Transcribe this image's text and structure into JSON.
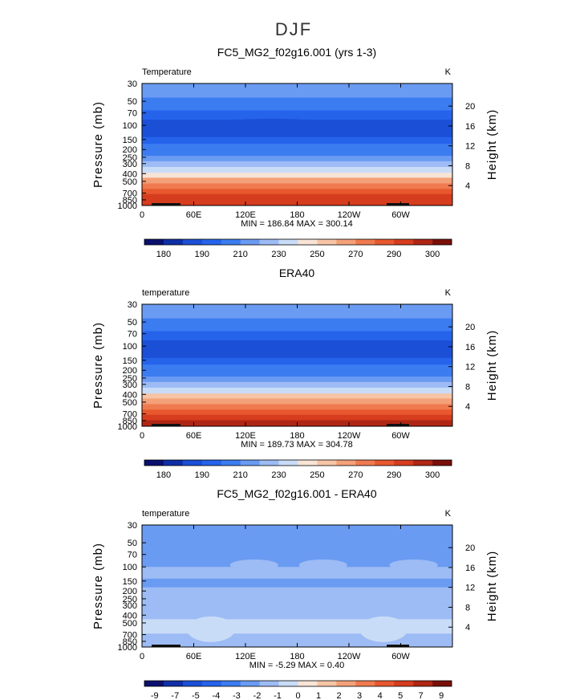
{
  "figure_title": "DJF",
  "chart_data": [
    {
      "type": "heatmap",
      "title": "FC5_MG2_f02g16.001 (yrs 1-3)",
      "variable_label": "Temperature",
      "units_label": "K",
      "ylabel": "Pressure (mb)",
      "y2label": "Height (km)",
      "xlabel": "",
      "x_ticks": [
        "0",
        "60E",
        "120E",
        "180",
        "120W",
        "60W"
      ],
      "x_tick_values": [
        0,
        60,
        120,
        180,
        240,
        300
      ],
      "xlim": [
        0,
        360
      ],
      "y_ticks": [
        "30",
        "50",
        "70",
        "100",
        "150",
        "200",
        "250",
        "300",
        "400",
        "500",
        "700",
        "850",
        "1000"
      ],
      "y_tick_values": [
        30,
        50,
        70,
        100,
        150,
        200,
        250,
        300,
        400,
        500,
        700,
        850,
        1000
      ],
      "ylim": [
        30,
        1000
      ],
      "y2_ticks": [
        "20",
        "16",
        "12",
        "8",
        "4"
      ],
      "y2_tick_values": [
        20,
        16,
        12,
        8,
        4
      ],
      "stats": "MIN = 186.84   MAX = 300.14",
      "min": 186.84,
      "max": 300.14,
      "colorbar_labels": [
        "180",
        "190",
        "210",
        "230",
        "250",
        "270",
        "290",
        "300"
      ],
      "colorbar_colors": [
        "#0a0f6e",
        "#0f2fa6",
        "#1a4fd6",
        "#2563eb",
        "#3b7cf0",
        "#6a9bf2",
        "#9dbbf4",
        "#c9dcf7",
        "#f8e4d6",
        "#f7c4a6",
        "#f4a078",
        "#f07a50",
        "#e8582e",
        "#d63c1e",
        "#b02614",
        "#7a0f0a"
      ],
      "band_values": [
        215,
        205,
        198,
        194,
        193,
        198,
        205,
        212,
        220,
        228,
        238,
        248,
        258,
        268,
        278,
        286,
        292,
        298
      ],
      "band_pressures": [
        30,
        45,
        65,
        85,
        110,
        140,
        170,
        200,
        240,
        280,
        330,
        390,
        450,
        530,
        620,
        720,
        840,
        1000
      ],
      "features": [
        {
          "x_center": 150,
          "pressure": 95,
          "value": 189
        }
      ]
    },
    {
      "type": "heatmap",
      "title": "ERA40",
      "variable_label": "temperature",
      "units_label": "K",
      "ylabel": "Pressure (mb)",
      "y2label": "Height (km)",
      "xlabel": "",
      "x_ticks": [
        "0",
        "60E",
        "120E",
        "180",
        "120W",
        "60W"
      ],
      "x_tick_values": [
        0,
        60,
        120,
        180,
        240,
        300
      ],
      "xlim": [
        0,
        360
      ],
      "y_ticks": [
        "30",
        "50",
        "70",
        "100",
        "150",
        "200",
        "250",
        "300",
        "400",
        "500",
        "700",
        "850",
        "1000"
      ],
      "y_tick_values": [
        30,
        50,
        70,
        100,
        150,
        200,
        250,
        300,
        400,
        500,
        700,
        850,
        1000
      ],
      "ylim": [
        30,
        1000
      ],
      "y2_ticks": [
        "20",
        "16",
        "12",
        "8",
        "4"
      ],
      "y2_tick_values": [
        20,
        16,
        12,
        8,
        4
      ],
      "stats": "MIN = 189.73   MAX = 304.78",
      "min": 189.73,
      "max": 304.78,
      "colorbar_labels": [
        "180",
        "190",
        "210",
        "230",
        "250",
        "270",
        "290",
        "300"
      ],
      "colorbar_colors": [
        "#0a0f6e",
        "#0f2fa6",
        "#1a4fd6",
        "#2563eb",
        "#3b7cf0",
        "#6a9bf2",
        "#9dbbf4",
        "#c9dcf7",
        "#f8e4d6",
        "#f7c4a6",
        "#f4a078",
        "#f07a50",
        "#e8582e",
        "#d63c1e",
        "#b02614",
        "#7a0f0a"
      ],
      "band_values": [
        215,
        206,
        199,
        195,
        195,
        199,
        206,
        213,
        221,
        229,
        239,
        249,
        259,
        269,
        279,
        288,
        295,
        302
      ],
      "band_pressures": [
        30,
        45,
        65,
        85,
        110,
        140,
        170,
        200,
        240,
        280,
        330,
        390,
        450,
        530,
        620,
        720,
        840,
        1000
      ],
      "features": []
    },
    {
      "type": "heatmap",
      "title": "FC5_MG2_f02g16.001 - ERA40",
      "variable_label": "temperature",
      "units_label": "K",
      "ylabel": "Pressure (mb)",
      "y2label": "Height (km)",
      "xlabel": "",
      "x_ticks": [
        "0",
        "60E",
        "120E",
        "180",
        "120W",
        "60W"
      ],
      "x_tick_values": [
        0,
        60,
        120,
        180,
        240,
        300
      ],
      "xlim": [
        0,
        360
      ],
      "y_ticks": [
        "30",
        "50",
        "70",
        "100",
        "150",
        "200",
        "250",
        "300",
        "400",
        "500",
        "700",
        "850",
        "1000"
      ],
      "y_tick_values": [
        30,
        50,
        70,
        100,
        150,
        200,
        250,
        300,
        400,
        500,
        700,
        850,
        1000
      ],
      "ylim": [
        30,
        1000
      ],
      "y2_ticks": [
        "20",
        "16",
        "12",
        "8",
        "4"
      ],
      "y2_tick_values": [
        20,
        16,
        12,
        8,
        4
      ],
      "stats": "MIN =  -5.29   MAX =   0.40",
      "min": -5.29,
      "max": 0.4,
      "colorbar_labels": [
        "-9",
        "-7",
        "-5",
        "-4",
        "-3",
        "-2",
        "-1",
        "0",
        "1",
        "2",
        "3",
        "4",
        "5",
        "7",
        "9"
      ],
      "colorbar_colors": [
        "#0a0f6e",
        "#0f2fa6",
        "#1a4fd6",
        "#2563eb",
        "#3b7cf0",
        "#6a9bf2",
        "#9dbbf4",
        "#c9dcf7",
        "#f8e4d6",
        "#f7c4a6",
        "#f4a078",
        "#f07a50",
        "#e8582e",
        "#d63c1e",
        "#b02614",
        "#7a0f0a"
      ],
      "band_values": [
        -3.2,
        -2.6,
        -3.2,
        -2.4,
        -2.7,
        -2.3,
        -2.0,
        -1.6,
        -1.4,
        -1.2,
        -1.1,
        -1.3,
        -1.5,
        -1.6
      ],
      "band_pressures": [
        30,
        50,
        75,
        100,
        140,
        180,
        230,
        290,
        360,
        450,
        560,
        680,
        820,
        1000
      ],
      "features": [
        {
          "x_center": 130,
          "pressure": 95,
          "value": -1.5
        },
        {
          "x_center": 210,
          "pressure": 95,
          "value": -1.5
        },
        {
          "x_center": 315,
          "pressure": 95,
          "value": -1.5
        },
        {
          "x_center": 80,
          "pressure": 600,
          "value": -0.5
        },
        {
          "x_center": 280,
          "pressure": 600,
          "value": -0.5
        }
      ]
    }
  ]
}
